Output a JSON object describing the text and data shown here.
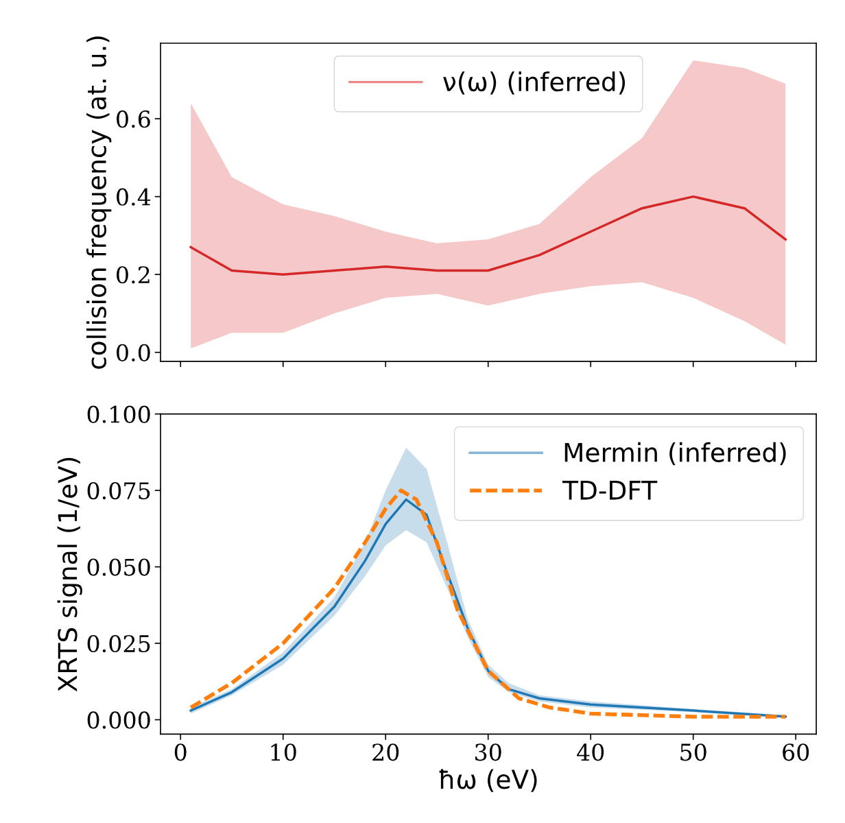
{
  "chart_data": [
    {
      "type": "line",
      "ylabel": "collision frequency (at. u.)",
      "xlim": [
        -1.95,
        62
      ],
      "xticks": [
        0,
        10,
        20,
        30,
        40,
        50,
        60
      ],
      "ylim": [
        -0.023,
        0.794
      ],
      "yticks": [
        {
          "value": 0.0,
          "label": "0.0"
        },
        {
          "value": 0.2,
          "label": "0.2"
        },
        {
          "value": 0.4,
          "label": "0.4"
        },
        {
          "value": 0.6,
          "label": "0.6"
        }
      ],
      "tick_labels": "y",
      "grid": false,
      "legend": "top",
      "line_style": "solid",
      "marker": "none",
      "series": [
        {
          "name": "ν(ω) (inferred)",
          "color": "#d62728",
          "x": [
            1,
            5,
            10,
            15,
            20,
            25,
            30,
            35,
            40,
            45,
            50,
            55,
            59
          ],
          "values": [
            0.27,
            0.21,
            0.2,
            0.21,
            0.22,
            0.21,
            0.21,
            0.25,
            0.31,
            0.37,
            0.4,
            0.37,
            0.29
          ],
          "lower": [
            0.01,
            0.05,
            0.05,
            0.1,
            0.14,
            0.15,
            0.12,
            0.15,
            0.17,
            0.18,
            0.14,
            0.08,
            0.02
          ],
          "upper": [
            0.64,
            0.45,
            0.38,
            0.35,
            0.31,
            0.28,
            0.29,
            0.33,
            0.45,
            0.55,
            0.75,
            0.73,
            0.69
          ]
        }
      ]
    },
    {
      "type": "line",
      "xlabel": "ħω (eV)",
      "ylabel": "XRTS signal (1/eV)",
      "xlim": [
        -1.95,
        62
      ],
      "xticks": [
        0,
        10,
        20,
        30,
        40,
        50,
        60
      ],
      "ylim": [
        -0.0047,
        0.1
      ],
      "yticks": [
        {
          "value": 0.0,
          "label": "0.000"
        },
        {
          "value": 0.025,
          "label": "0.025"
        },
        {
          "value": 0.05,
          "label": "0.050"
        },
        {
          "value": 0.075,
          "label": "0.075"
        },
        {
          "value": 0.1,
          "label": "0.100"
        }
      ],
      "grid": false,
      "legend": "top right",
      "marker": "none",
      "series": [
        {
          "name": "Mermin (inferred)",
          "color": "#1f77b4",
          "line_style": "solid",
          "x": [
            1,
            5,
            10,
            15,
            18,
            20,
            22,
            24,
            26,
            28,
            30,
            32,
            35,
            40,
            50,
            59
          ],
          "values": [
            0.003,
            0.009,
            0.02,
            0.037,
            0.052,
            0.064,
            0.072,
            0.067,
            0.048,
            0.03,
            0.016,
            0.01,
            0.007,
            0.005,
            0.003,
            0.001
          ],
          "lower": [
            0.002,
            0.008,
            0.018,
            0.034,
            0.047,
            0.057,
            0.062,
            0.058,
            0.043,
            0.027,
            0.014,
            0.009,
            0.006,
            0.004,
            0.0025,
            0.0008
          ],
          "upper": [
            0.004,
            0.01,
            0.022,
            0.04,
            0.058,
            0.075,
            0.089,
            0.082,
            0.058,
            0.033,
            0.018,
            0.012,
            0.008,
            0.006,
            0.0035,
            0.0015
          ]
        },
        {
          "name": "TD-DFT",
          "color": "#ff7f0e",
          "line_style": "dashed",
          "x": [
            1,
            5,
            10,
            15,
            18,
            20,
            21.5,
            23,
            25,
            27,
            30,
            33,
            36,
            40,
            50,
            59
          ],
          "values": [
            0.004,
            0.012,
            0.025,
            0.043,
            0.058,
            0.069,
            0.075,
            0.072,
            0.058,
            0.036,
            0.016,
            0.007,
            0.004,
            0.002,
            0.001,
            0.001
          ]
        }
      ]
    }
  ]
}
